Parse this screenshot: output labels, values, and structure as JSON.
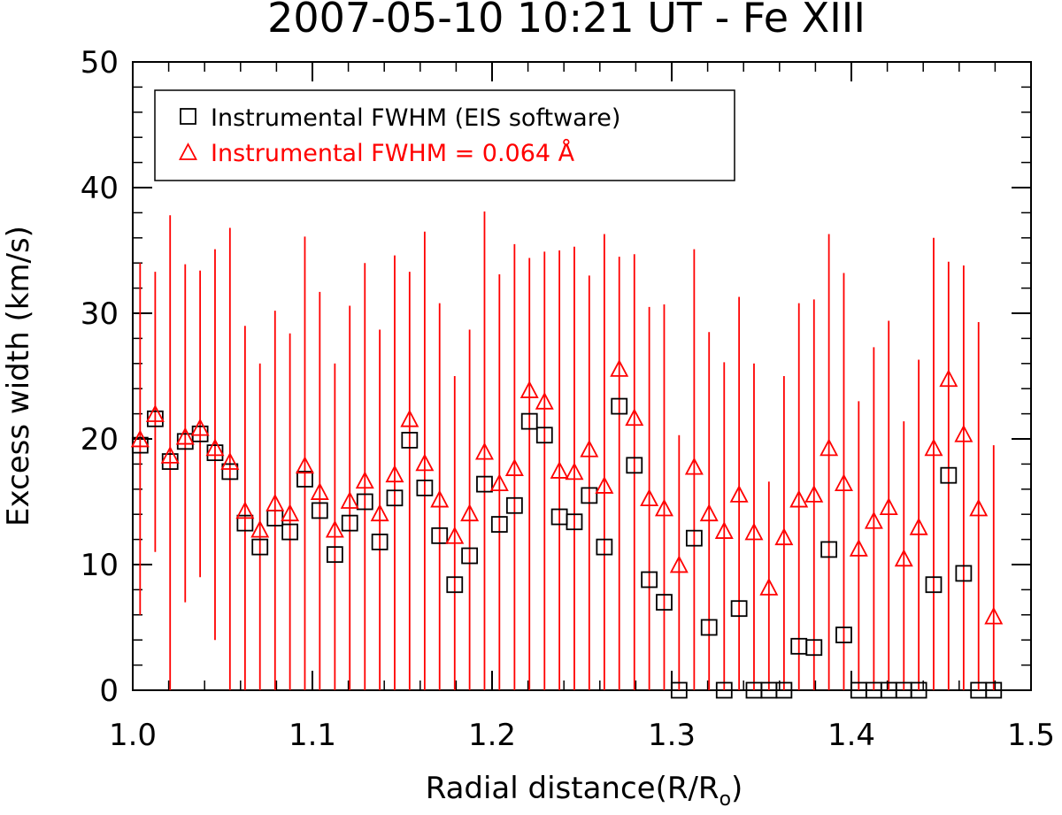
{
  "chart_data": {
    "type": "scatter",
    "title": "2007-05-10 10:21 UT - Fe XIII",
    "xlabel": "Radial distance(R/R",
    "xlabel_subscript": "o",
    "xlabel_suffix": ")",
    "ylabel": "Excess width (km/s)",
    "xlim": [
      1.0,
      1.5
    ],
    "ylim": [
      0,
      50
    ],
    "x_ticks": [
      1.0,
      1.1,
      1.2,
      1.3,
      1.4,
      1.5
    ],
    "x_tick_labels": [
      "1.0",
      "1.1",
      "1.2",
      "1.3",
      "1.4",
      "1.5"
    ],
    "y_ticks": [
      0,
      10,
      20,
      30,
      40,
      50
    ],
    "y_tick_labels": [
      "0",
      "10",
      "20",
      "30",
      "40",
      "50"
    ],
    "grid": false,
    "legend_position": "top-left",
    "series": [
      {
        "name": "Instrumental FWHM (EIS software)",
        "marker": "square",
        "color": "#000000",
        "x": [
          1.0041,
          1.0125,
          1.0208,
          1.0292,
          1.0375,
          1.0458,
          1.0541,
          1.0625,
          1.0708,
          1.0792,
          1.0875,
          1.0958,
          1.1041,
          1.1125,
          1.1208,
          1.1292,
          1.1375,
          1.1458,
          1.1541,
          1.1625,
          1.1708,
          1.1792,
          1.1875,
          1.1958,
          1.2041,
          1.2125,
          1.2208,
          1.2292,
          1.2375,
          1.2458,
          1.2541,
          1.2625,
          1.2708,
          1.2792,
          1.2875,
          1.2958,
          1.3041,
          1.3125,
          1.3208,
          1.3292,
          1.3375,
          1.3458,
          1.3541,
          1.3625,
          1.3708,
          1.3792,
          1.3875,
          1.3958,
          1.4041,
          1.4125,
          1.4208,
          1.4292,
          1.4375,
          1.4458,
          1.4541,
          1.4625,
          1.4708,
          1.4792
        ],
        "values": [
          19.5,
          21.6,
          18.2,
          19.8,
          20.4,
          18.9,
          17.4,
          13.3,
          11.4,
          13.7,
          12.6,
          16.8,
          14.3,
          10.8,
          13.3,
          15.0,
          11.8,
          15.3,
          19.9,
          16.1,
          12.3,
          8.4,
          10.7,
          16.4,
          13.2,
          14.7,
          21.4,
          20.3,
          13.8,
          13.4,
          15.5,
          11.4,
          22.6,
          17.9,
          8.8,
          7.0,
          0,
          12.1,
          5.0,
          0,
          6.5,
          0,
          0,
          0,
          3.5,
          3.4,
          11.2,
          4.4,
          0,
          0,
          0,
          0,
          0,
          8.4,
          17.1,
          9.3,
          0,
          0
        ]
      },
      {
        "name": "Instrumental FWHM = 0.064 Å",
        "marker": "triangle",
        "color": "#ff0000",
        "x": [
          1.0041,
          1.0125,
          1.0208,
          1.0292,
          1.0375,
          1.0458,
          1.0541,
          1.0625,
          1.0708,
          1.0792,
          1.0875,
          1.0958,
          1.1041,
          1.1125,
          1.1208,
          1.1292,
          1.1375,
          1.1458,
          1.1541,
          1.1625,
          1.1708,
          1.1792,
          1.1875,
          1.1958,
          1.2041,
          1.2125,
          1.2208,
          1.2292,
          1.2375,
          1.2458,
          1.2541,
          1.2625,
          1.2708,
          1.2792,
          1.2875,
          1.2958,
          1.3041,
          1.3125,
          1.3208,
          1.3292,
          1.3375,
          1.3458,
          1.3541,
          1.3625,
          1.3708,
          1.3792,
          1.3875,
          1.3958,
          1.4041,
          1.4125,
          1.4208,
          1.4292,
          1.4375,
          1.4458,
          1.4541,
          1.4625,
          1.4708,
          1.4792
        ],
        "values": [
          19.9,
          21.9,
          18.6,
          20.1,
          20.8,
          19.2,
          18.1,
          14.2,
          12.7,
          14.8,
          14.0,
          17.8,
          15.7,
          12.7,
          15.0,
          16.6,
          14.0,
          17.1,
          21.5,
          18.0,
          15.1,
          12.2,
          14.0,
          18.9,
          16.4,
          17.6,
          23.8,
          22.9,
          17.4,
          17.3,
          19.1,
          16.2,
          25.5,
          21.6,
          15.2,
          14.4,
          9.9,
          17.7,
          14.0,
          12.6,
          15.5,
          12.5,
          8.1,
          12.1,
          15.1,
          15.5,
          19.2,
          16.4,
          11.2,
          13.4,
          14.5,
          10.4,
          12.9,
          19.2,
          24.7,
          20.3,
          14.4,
          5.8
        ],
        "error_low": [
          6.0,
          11.0,
          0.0,
          7.0,
          9.0,
          4.0,
          0.0,
          0.0,
          0.0,
          0.0,
          0.0,
          0.0,
          0.0,
          0.0,
          0.0,
          0.0,
          0.0,
          0.0,
          0.0,
          0.0,
          0.0,
          0.0,
          0.0,
          0.0,
          0.0,
          0.0,
          0.0,
          0.0,
          0.0,
          0.0,
          0.0,
          0.0,
          0.0,
          0.0,
          0.0,
          0.0,
          0.0,
          0.0,
          0.0,
          0.0,
          0.0,
          0.0,
          0.0,
          0.0,
          0.0,
          0.0,
          0.0,
          0.0,
          0.0,
          0.0,
          0.0,
          0.0,
          0.0,
          0.0,
          0.0,
          0.0,
          0.0,
          0.0
        ],
        "error_high": [
          34.0,
          33.3,
          37.8,
          33.9,
          33.4,
          35.1,
          36.8,
          29.0,
          26.0,
          30.2,
          28.4,
          36.1,
          31.7,
          26.0,
          30.6,
          34.0,
          28.7,
          34.6,
          33.3,
          36.5,
          30.8,
          25.0,
          28.7,
          38.1,
          33.1,
          35.5,
          34.4,
          34.9,
          35.0,
          35.3,
          33.0,
          36.3,
          34.5,
          34.7,
          30.5,
          30.7,
          20.3,
          35.1,
          28.5,
          26.1,
          31.3,
          26.0,
          16.6,
          25.0,
          30.8,
          31.1,
          36.3,
          33.2,
          23.0,
          27.3,
          29.4,
          21.4,
          26.3,
          36.0,
          34.1,
          33.8,
          29.3,
          19.5
        ]
      }
    ]
  }
}
